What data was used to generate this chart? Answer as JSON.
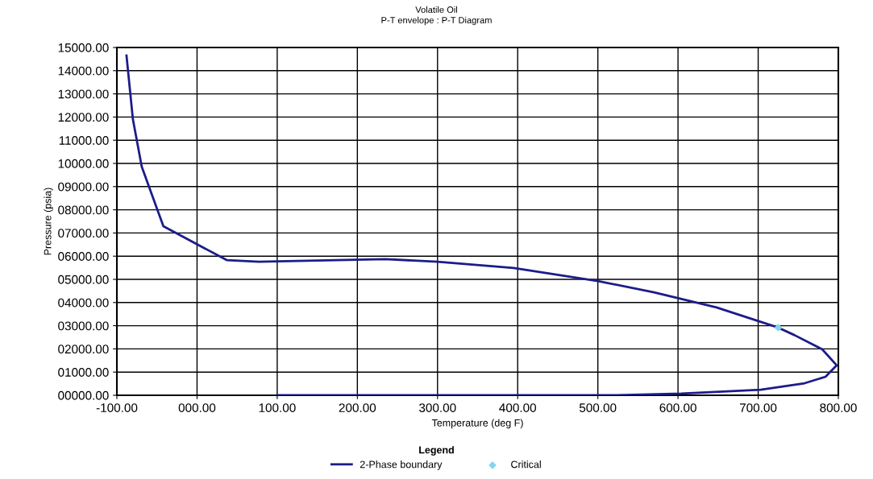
{
  "chart_data": {
    "type": "line",
    "title": "Volatile Oil",
    "subtitle": "P-T envelope : P-T Diagram",
    "xlabel": "Temperature (deg F)",
    "ylabel": "Pressure (psia)",
    "legend_title": "Legend",
    "legend": "bottom",
    "grid": true,
    "marker": "none",
    "xlim": [
      -100,
      800
    ],
    "ylim": [
      0,
      15000
    ],
    "xticks": [
      {
        "value": -100,
        "label": "-100.00"
      },
      {
        "value": 0,
        "label": "000.00"
      },
      {
        "value": 100,
        "label": "100.00"
      },
      {
        "value": 200,
        "label": "200.00"
      },
      {
        "value": 300,
        "label": "300.00"
      },
      {
        "value": 400,
        "label": "400.00"
      },
      {
        "value": 500,
        "label": "500.00"
      },
      {
        "value": 600,
        "label": "600.00"
      },
      {
        "value": 700,
        "label": "700.00"
      },
      {
        "value": 800,
        "label": "800.00"
      }
    ],
    "yticks": [
      {
        "value": 0,
        "label": "00000.00"
      },
      {
        "value": 1000,
        "label": "01000.00"
      },
      {
        "value": 2000,
        "label": "02000.00"
      },
      {
        "value": 3000,
        "label": "03000.00"
      },
      {
        "value": 4000,
        "label": "04000.00"
      },
      {
        "value": 5000,
        "label": "05000.00"
      },
      {
        "value": 6000,
        "label": "06000.00"
      },
      {
        "value": 7000,
        "label": "07000.00"
      },
      {
        "value": 8000,
        "label": "08000.00"
      },
      {
        "value": 9000,
        "label": "09000.00"
      },
      {
        "value": 10000,
        "label": "10000.00"
      },
      {
        "value": 11000,
        "label": "11000.00"
      },
      {
        "value": 12000,
        "label": "12000.00"
      },
      {
        "value": 13000,
        "label": "13000.00"
      },
      {
        "value": 14000,
        "label": "14000.00"
      },
      {
        "value": 15000,
        "label": "15000.00"
      }
    ],
    "series": [
      {
        "name": "2-Phase boundary",
        "color": "#1c1c8a",
        "x": [
          -88,
          -80,
          -69,
          -42,
          37,
          77,
          235,
          300,
          395,
          500,
          570,
          648,
          725,
          745,
          780,
          798,
          784,
          758,
          703,
          604,
          524,
          100
        ],
        "values": [
          14650,
          11900,
          9860,
          7290,
          5830,
          5760,
          5870,
          5760,
          5490,
          4930,
          4440,
          3790,
          2920,
          2600,
          1980,
          1290,
          800,
          520,
          240,
          70,
          0,
          0
        ]
      },
      {
        "name": "Critical",
        "type": "scatter",
        "color": "#87d3ee",
        "marker": "diamond",
        "x": [
          725
        ],
        "values": [
          2920
        ]
      }
    ]
  }
}
